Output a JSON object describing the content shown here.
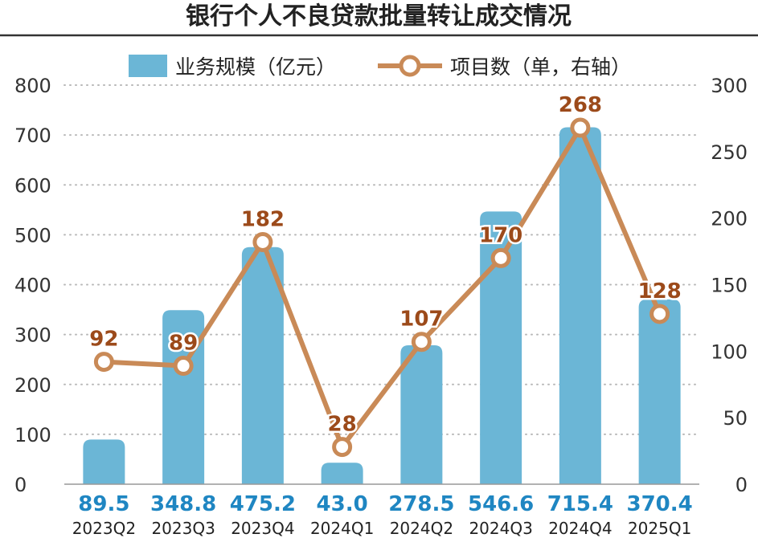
{
  "chart_data": {
    "type": "bar+line",
    "title": "银行个人不良贷款批量转让成交情况",
    "categories": [
      "2023Q2",
      "2023Q3",
      "2023Q4",
      "2024Q1",
      "2024Q2",
      "2024Q3",
      "2024Q4",
      "2025Q1"
    ],
    "series": [
      {
        "name": "业务规模（亿元）",
        "type": "bar",
        "axis": "left",
        "color": "#6bb6d6",
        "values": [
          89.5,
          348.8,
          475.2,
          43.0,
          278.5,
          546.6,
          715.4,
          370.4
        ]
      },
      {
        "name": "项目数（单，右轴）",
        "type": "line",
        "axis": "right",
        "color": "#c98a57",
        "values": [
          92,
          89,
          182,
          28,
          107,
          170,
          268,
          128
        ]
      }
    ],
    "bar_labels": [
      "89.5",
      "348.8",
      "475.2",
      "43.0",
      "278.5",
      "546.6",
      "715.4",
      "370.4"
    ],
    "line_labels": [
      "92",
      "89",
      "182",
      "28",
      "107",
      "170",
      "268",
      "128"
    ],
    "y_left": {
      "min": 0,
      "max": 800,
      "ticks": [
        "0",
        "100",
        "200",
        "300",
        "400",
        "500",
        "600",
        "700",
        "800"
      ]
    },
    "y_right": {
      "min": 0,
      "max": 300,
      "ticks": [
        "0",
        "50",
        "100",
        "150",
        "200",
        "250",
        "300"
      ]
    },
    "grid": "dotted horizontal",
    "legend_position": "top"
  }
}
